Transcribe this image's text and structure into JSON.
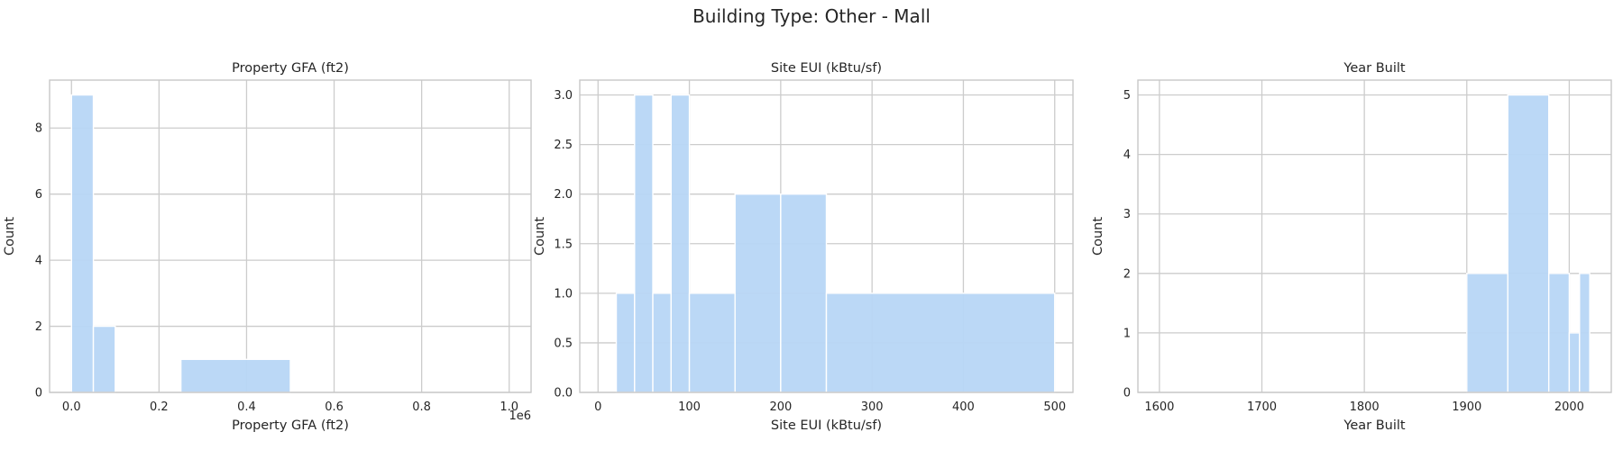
{
  "suptitle": "Building Type: Other - Mall",
  "colors": {
    "bar": "#b7d6f5",
    "grid": "#cccccc",
    "frame": "#c8c8c8",
    "text": "#262626"
  },
  "chart_data": [
    {
      "type": "bar",
      "title": "Property GFA (ft2)",
      "xlabel": "Property GFA (ft2)",
      "ylabel": "Count",
      "offset_label": "1e6",
      "xlim": [
        -0.05,
        1.05
      ],
      "ylim": [
        0,
        9.45
      ],
      "xticks": [
        0.0,
        0.2,
        0.4,
        0.6,
        0.8,
        1.0
      ],
      "xtick_labels": [
        "0.0",
        "0.2",
        "0.4",
        "0.6",
        "0.8",
        "1.0"
      ],
      "yticks": [
        0,
        2,
        4,
        6,
        8
      ],
      "ytick_labels": [
        "0",
        "2",
        "4",
        "6",
        "8"
      ],
      "bins": [
        {
          "x0": 0.0,
          "x1": 0.05,
          "count": 9
        },
        {
          "x0": 0.05,
          "x1": 0.1,
          "count": 2
        },
        {
          "x0": 0.1,
          "x1": 0.25,
          "count": 0
        },
        {
          "x0": 0.25,
          "x1": 0.5,
          "count": 1
        },
        {
          "x0": 0.5,
          "x1": 1.0,
          "count": 0
        }
      ],
      "grid": true
    },
    {
      "type": "bar",
      "title": "Site EUI (kBtu/sf)",
      "xlabel": "Site EUI (kBtu/sf)",
      "ylabel": "Count",
      "xlim": [
        -20,
        520
      ],
      "ylim": [
        0,
        3.15
      ],
      "xticks": [
        0,
        100,
        200,
        300,
        400,
        500
      ],
      "xtick_labels": [
        "0",
        "100",
        "200",
        "300",
        "400",
        "500"
      ],
      "yticks": [
        0.0,
        0.5,
        1.0,
        1.5,
        2.0,
        2.5,
        3.0
      ],
      "ytick_labels": [
        "0.0",
        "0.5",
        "1.0",
        "1.5",
        "2.0",
        "2.5",
        "3.0"
      ],
      "bins": [
        {
          "x0": 20,
          "x1": 40,
          "count": 1
        },
        {
          "x0": 40,
          "x1": 60,
          "count": 3
        },
        {
          "x0": 60,
          "x1": 80,
          "count": 1
        },
        {
          "x0": 80,
          "x1": 100,
          "count": 3
        },
        {
          "x0": 100,
          "x1": 150,
          "count": 1
        },
        {
          "x0": 150,
          "x1": 200,
          "count": 2
        },
        {
          "x0": 200,
          "x1": 250,
          "count": 2
        },
        {
          "x0": 250,
          "x1": 500,
          "count": 1
        }
      ],
      "grid": true
    },
    {
      "type": "bar",
      "title": "Year Built",
      "xlabel": "Year Built",
      "ylabel": "Count",
      "xlim": [
        1579,
        2041
      ],
      "ylim": [
        0,
        5.25
      ],
      "xticks": [
        1600,
        1700,
        1800,
        1900,
        2000
      ],
      "xtick_labels": [
        "1600",
        "1700",
        "1800",
        "1900",
        "2000"
      ],
      "yticks": [
        0,
        1,
        2,
        3,
        4,
        5
      ],
      "ytick_labels": [
        "0",
        "1",
        "2",
        "3",
        "4",
        "5"
      ],
      "bins": [
        {
          "x0": 1900,
          "x1": 1940,
          "count": 2
        },
        {
          "x0": 1940,
          "x1": 1980,
          "count": 5
        },
        {
          "x0": 1980,
          "x1": 2000,
          "count": 2
        },
        {
          "x0": 2000,
          "x1": 2010,
          "count": 1
        },
        {
          "x0": 2010,
          "x1": 2020,
          "count": 2
        }
      ],
      "grid": true
    }
  ]
}
